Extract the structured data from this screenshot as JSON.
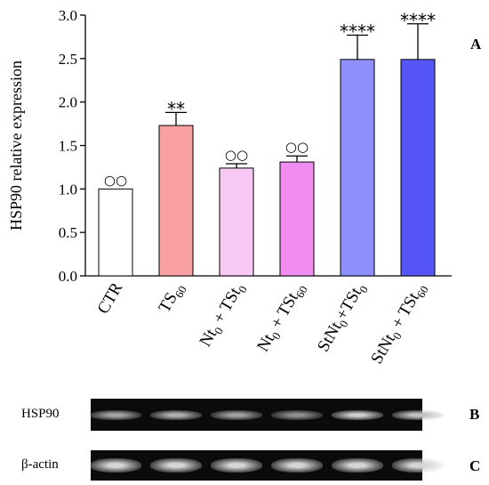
{
  "chart_data": {
    "type": "bar",
    "ylabel": "HSP90 relative expression",
    "ylim": [
      0,
      3.0
    ],
    "yticks": [
      "0.0",
      "0.5",
      "1.0",
      "1.5",
      "2.0",
      "2.5",
      "3.0"
    ],
    "categories": [
      {
        "main": "CTR",
        "parts": [
          [
            "CTR",
            ""
          ]
        ]
      },
      {
        "main": "TS60",
        "parts": [
          [
            "TS",
            "60"
          ]
        ]
      },
      {
        "main": "Nt0 + TSt0",
        "parts": [
          [
            "Nt",
            "0"
          ],
          [
            " + TSt",
            "0"
          ]
        ]
      },
      {
        "main": "Nt0 + TSt60",
        "parts": [
          [
            "Nt",
            "0"
          ],
          [
            " + TSt",
            "60"
          ]
        ]
      },
      {
        "main": "StNt0+TSt0",
        "parts": [
          [
            "StNt",
            "0"
          ],
          [
            "+TSt",
            "0"
          ]
        ]
      },
      {
        "main": "StNt0 + TSt60",
        "parts": [
          [
            "StNt",
            "0"
          ],
          [
            " + TSt",
            "60"
          ]
        ]
      }
    ],
    "values": [
      1.0,
      1.73,
      1.24,
      1.31,
      2.49,
      2.49
    ],
    "errors": [
      0.0,
      0.15,
      0.05,
      0.07,
      0.28,
      0.41
    ],
    "colors": [
      "#ffffff",
      "#f9a0a2",
      "#f6c8f3",
      "#f18cf1",
      "#8f8ffb",
      "#5656f6"
    ],
    "annotations": [
      "○○",
      "**",
      "○○",
      "○○",
      "****",
      "****"
    ],
    "grid": false,
    "panel_label": "A"
  },
  "blots": [
    {
      "label": "HSP90",
      "panel": "B",
      "intensities": [
        0.62,
        0.7,
        0.6,
        0.48,
        0.9,
        0.82
      ]
    },
    {
      "label": "β-actin",
      "panel": "C",
      "intensities": [
        0.95,
        0.95,
        0.95,
        0.95,
        0.95,
        0.95
      ]
    }
  ]
}
